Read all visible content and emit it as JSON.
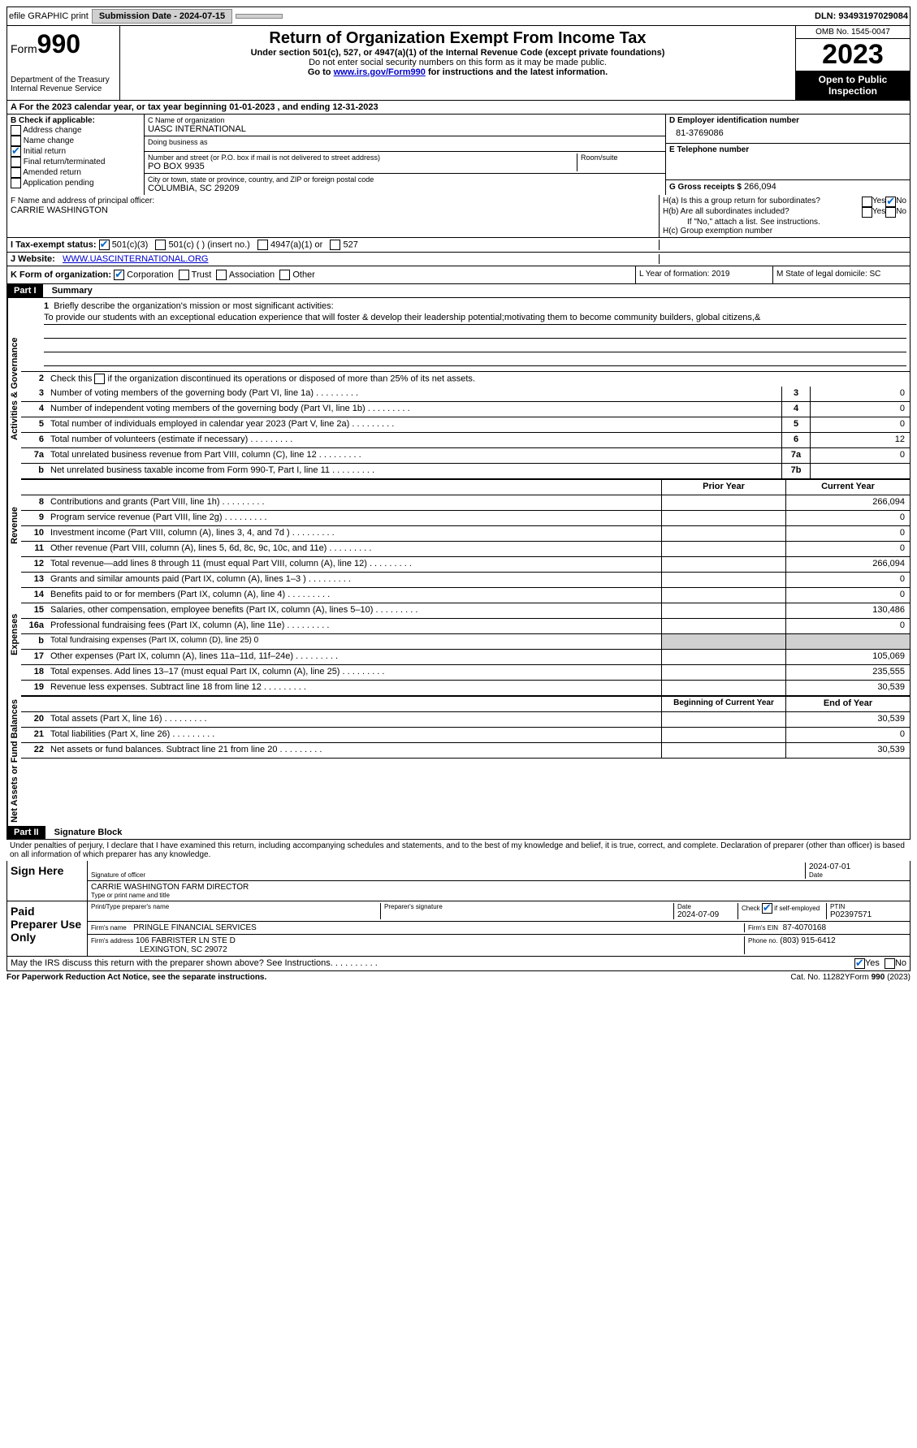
{
  "topbar": {
    "efile": "efile GRAPHIC print",
    "submission": "Submission Date - 2024-07-15",
    "dln": "DLN: 93493197029084"
  },
  "header": {
    "form_label": "Form",
    "form_no": "990",
    "dept": "Department of the Treasury Internal Revenue Service",
    "title": "Return of Organization Exempt From Income Tax",
    "sub1": "Under section 501(c), 527, or 4947(a)(1) of the Internal Revenue Code (except private foundations)",
    "sub2": "Do not enter social security numbers on this form as it may be made public.",
    "sub3_pre": "Go to ",
    "sub3_link": "www.irs.gov/Form990",
    "sub3_post": " for instructions and the latest information.",
    "omb": "OMB No. 1545-0047",
    "year": "2023",
    "open": "Open to Public Inspection"
  },
  "row_a": "A For the 2023 calendar year, or tax year beginning 01-01-2023   , and ending 12-31-2023",
  "box_b": {
    "hdr": "B Check if applicable:",
    "opts": [
      "Address change",
      "Name change",
      "Initial return",
      "Final return/terminated",
      "Amended return",
      "Application pending"
    ],
    "checked_idx": 2
  },
  "box_c": {
    "name_lbl": "C Name of organization",
    "name": "UASC INTERNATIONAL",
    "dba_lbl": "Doing business as",
    "dba": "",
    "addr_lbl": "Number and street (or P.O. box if mail is not delivered to street address)",
    "addr": "PO BOX 9935",
    "room_lbl": "Room/suite",
    "city_lbl": "City or town, state or province, country, and ZIP or foreign postal code",
    "city": "COLUMBIA, SC  29209"
  },
  "box_d": {
    "lbl": "D Employer identification number",
    "val": "81-3769086"
  },
  "box_e": {
    "lbl": "E Telephone number",
    "val": ""
  },
  "box_g": {
    "lbl": "G Gross receipts $",
    "val": "266,094"
  },
  "box_f": {
    "lbl": "F  Name and address of principal officer:",
    "val": "CARRIE WASHINGTON"
  },
  "box_h": {
    "a": "H(a)  Is this a group return for subordinates?",
    "b": "H(b)  Are all subordinates included?",
    "b_note": "If \"No,\" attach a list. See instructions.",
    "c": "H(c)  Group exemption number"
  },
  "row_i": {
    "lbl": "I    Tax-exempt status:",
    "opts": [
      "501(c)(3)",
      "501(c) (  ) (insert no.)",
      "4947(a)(1) or",
      "527"
    ]
  },
  "row_j": {
    "lbl": "J   Website:",
    "val": "WWW.UASCINTERNATIONAL.ORG"
  },
  "row_k": {
    "lbl": "K Form of organization:",
    "opts": [
      "Corporation",
      "Trust",
      "Association",
      "Other"
    ],
    "l": "L Year of formation: 2019",
    "m": "M State of legal domicile: SC"
  },
  "part1": {
    "hdr": "Part I",
    "title": "Summary"
  },
  "mission": {
    "lbl": "Briefly describe the organization's mission or most significant activities:",
    "text": "To provide our students with an exceptional education experience that will foster & develop their leadership potential;motivating them to become community builders, global citizens,&"
  },
  "gov_lines": [
    {
      "n": "2",
      "d": "Check this box   if the organization discontinued its operations or disposed of more than 25% of its net assets."
    },
    {
      "n": "3",
      "d": "Number of voting members of the governing body (Part VI, line 1a)",
      "box": "3",
      "v": "0"
    },
    {
      "n": "4",
      "d": "Number of independent voting members of the governing body (Part VI, line 1b)",
      "box": "4",
      "v": "0"
    },
    {
      "n": "5",
      "d": "Total number of individuals employed in calendar year 2023 (Part V, line 2a)",
      "box": "5",
      "v": "0"
    },
    {
      "n": "6",
      "d": "Total number of volunteers (estimate if necessary)",
      "box": "6",
      "v": "12"
    },
    {
      "n": "7a",
      "d": "Total unrelated business revenue from Part VIII, column (C), line 12",
      "box": "7a",
      "v": "0"
    },
    {
      "n": "b",
      "d": "Net unrelated business taxable income from Form 990-T, Part I, line 11",
      "box": "7b",
      "v": ""
    }
  ],
  "col_hdrs": {
    "py": "Prior Year",
    "cy": "Current Year"
  },
  "rev_lines": [
    {
      "n": "8",
      "d": "Contributions and grants (Part VIII, line 1h)",
      "py": "",
      "cy": "266,094"
    },
    {
      "n": "9",
      "d": "Program service revenue (Part VIII, line 2g)",
      "py": "",
      "cy": "0"
    },
    {
      "n": "10",
      "d": "Investment income (Part VIII, column (A), lines 3, 4, and 7d )",
      "py": "",
      "cy": "0"
    },
    {
      "n": "11",
      "d": "Other revenue (Part VIII, column (A), lines 5, 6d, 8c, 9c, 10c, and 11e)",
      "py": "",
      "cy": "0"
    },
    {
      "n": "12",
      "d": "Total revenue—add lines 8 through 11 (must equal Part VIII, column (A), line 12)",
      "py": "",
      "cy": "266,094"
    }
  ],
  "exp_lines": [
    {
      "n": "13",
      "d": "Grants and similar amounts paid (Part IX, column (A), lines 1–3 )",
      "py": "",
      "cy": "0"
    },
    {
      "n": "14",
      "d": "Benefits paid to or for members (Part IX, column (A), line 4)",
      "py": "",
      "cy": "0"
    },
    {
      "n": "15",
      "d": "Salaries, other compensation, employee benefits (Part IX, column (A), lines 5–10)",
      "py": "",
      "cy": "130,486"
    },
    {
      "n": "16a",
      "d": "Professional fundraising fees (Part IX, column (A), line 11e)",
      "py": "",
      "cy": "0"
    },
    {
      "n": "b",
      "d": "Total fundraising expenses (Part IX, column (D), line 25) 0",
      "gray": true
    },
    {
      "n": "17",
      "d": "Other expenses (Part IX, column (A), lines 11a–11d, 11f–24e)",
      "py": "",
      "cy": "105,069"
    },
    {
      "n": "18",
      "d": "Total expenses. Add lines 13–17 (must equal Part IX, column (A), line 25)",
      "py": "",
      "cy": "235,555"
    },
    {
      "n": "19",
      "d": "Revenue less expenses. Subtract line 18 from line 12",
      "py": "",
      "cy": "30,539"
    }
  ],
  "na_hdrs": {
    "py": "Beginning of Current Year",
    "cy": "End of Year"
  },
  "na_lines": [
    {
      "n": "20",
      "d": "Total assets (Part X, line 16)",
      "py": "",
      "cy": "30,539"
    },
    {
      "n": "21",
      "d": "Total liabilities (Part X, line 26)",
      "py": "",
      "cy": "0"
    },
    {
      "n": "22",
      "d": "Net assets or fund balances. Subtract line 21 from line 20",
      "py": "",
      "cy": "30,539"
    }
  ],
  "part2": {
    "hdr": "Part II",
    "title": "Signature Block"
  },
  "perjury": "Under penalties of perjury, I declare that I have examined this return, including accompanying schedules and statements, and to the best of my knowledge and belief, it is true, correct, and complete. Declaration of preparer (other than officer) is based on all information of which preparer has any knowledge.",
  "sign": {
    "here": "Sign Here",
    "sig_lbl": "Signature of officer",
    "date_val": "2024-07-01",
    "date_lbl": "Date",
    "name": "CARRIE WASHINGTON  FARM DIRECTOR",
    "name_lbl": "Type or print name and title"
  },
  "paid": {
    "hdr": "Paid Preparer Use Only",
    "prep_name_lbl": "Print/Type preparer's name",
    "prep_sig_lbl": "Preparer's signature",
    "date_lbl": "Date",
    "date": "2024-07-09",
    "self_lbl": "Check         if self-employed",
    "ptin_lbl": "PTIN",
    "ptin": "P02397571",
    "firm_name_lbl": "Firm's name",
    "firm_name": "PRINGLE FINANCIAL SERVICES",
    "firm_ein_lbl": "Firm's EIN",
    "firm_ein": "87-4070168",
    "firm_addr_lbl": "Firm's address",
    "firm_addr": "106 FABRISTER LN STE D",
    "firm_city": "LEXINGTON, SC  29072",
    "phone_lbl": "Phone no.",
    "phone": "(803) 915-6412"
  },
  "discuss": "May the IRS discuss this return with the preparer shown above? See Instructions.",
  "footer": {
    "l": "For Paperwork Reduction Act Notice, see the separate instructions.",
    "m": "Cat. No. 11282Y",
    "r": "Form 990 (2023)"
  },
  "side_labels": {
    "gov": "Activities & Governance",
    "rev": "Revenue",
    "exp": "Expenses",
    "na": "Net Assets or Fund Balances"
  }
}
